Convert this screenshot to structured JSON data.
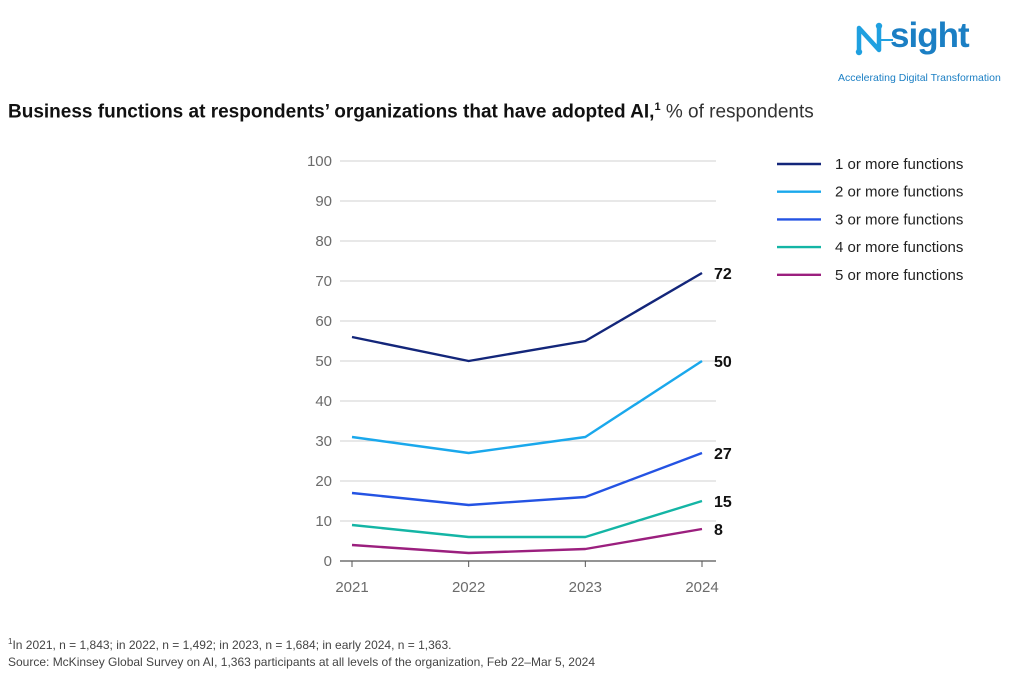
{
  "logo": {
    "wordmark": "sight",
    "tagline": "Accelerating Digital Transformation"
  },
  "title": {
    "main": "Business functions at respondents’ organizations that have adopted AI,",
    "footnote_mark": "1",
    "unit": " % of respondents"
  },
  "chart_data": {
    "type": "line",
    "x": [
      "2021",
      "2022",
      "2023",
      "2024"
    ],
    "ylim": [
      0,
      100
    ],
    "yticks": [
      0,
      10,
      20,
      30,
      40,
      50,
      60,
      70,
      80,
      90,
      100
    ],
    "grid": true,
    "legend_position": "right",
    "series": [
      {
        "name": "1 or more functions",
        "values": [
          56,
          50,
          55,
          72
        ],
        "color": "#13267a",
        "end_label": "72"
      },
      {
        "name": "2 or more functions",
        "values": [
          31,
          27,
          31,
          50
        ],
        "color": "#1aa8ec",
        "end_label": "50"
      },
      {
        "name": "3 or more functions",
        "values": [
          17,
          14,
          16,
          27
        ],
        "color": "#2453e3",
        "end_label": "27"
      },
      {
        "name": "4 or more functions",
        "values": [
          9,
          6,
          6,
          15
        ],
        "color": "#14b5a5",
        "end_label": "15"
      },
      {
        "name": "5 or more functions",
        "values": [
          4,
          2,
          3,
          8
        ],
        "color": "#9b1f7e",
        "end_label": "8"
      }
    ]
  },
  "footnote": {
    "mark": "1",
    "line1": "In 2021, n = 1,843; in 2022, n = 1,492; in 2023, n = 1,684; in early 2024, n = 1,363.",
    "line2": "Source: McKinsey Global Survey on AI, 1,363 participants at all levels of the organization, Feb 22–Mar 5, 2024"
  }
}
